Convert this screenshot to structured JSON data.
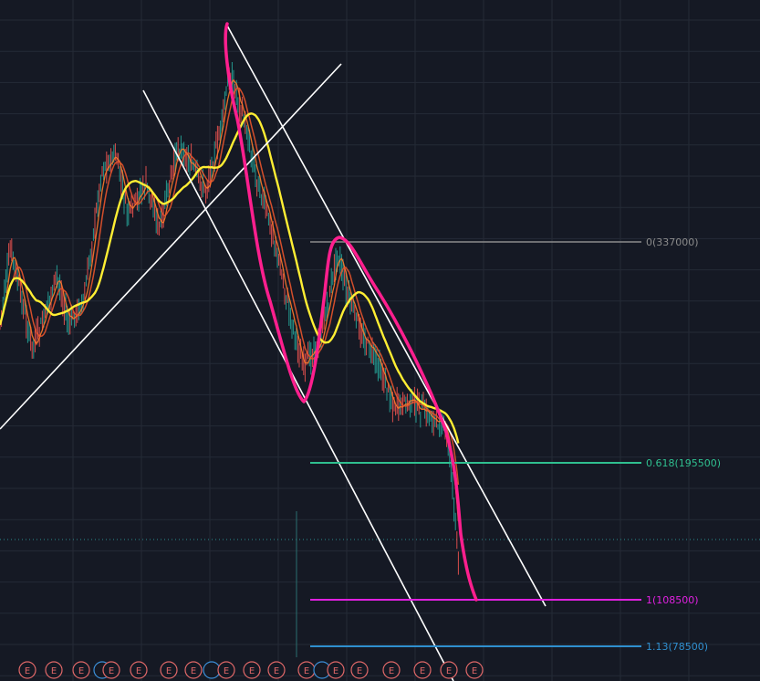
{
  "chart_data": {
    "type": "line",
    "description_free": true,
    "y_scale": "price",
    "grid": true,
    "colors": {
      "background": "#151924",
      "grid": "#252a36",
      "candle_up": "#26a69a",
      "candle_down": "#ef5350",
      "ma_fast": "#ff7a2a",
      "ma_mid": "#e8542c",
      "ma_slow": "#ffee33",
      "drawing_pink": "#ff1f8e",
      "trendline": "#ffffff",
      "fib_0": "#8c8c8c",
      "fib_0618": "#2fbf8f",
      "fib_1": "#e020e0",
      "fib_113": "#2f8fcf",
      "event": "#e06868"
    },
    "fib_levels": [
      {
        "ratio_label": "0",
        "value": "337000",
        "color": "#8c8c8c"
      },
      {
        "ratio_label": "0.618",
        "value": "195500",
        "color": "#2fbf8f"
      },
      {
        "ratio_label": "1",
        "value": "108500",
        "color": "#e020e0"
      },
      {
        "ratio_label": "1.13",
        "value": "78500",
        "color": "#2f8fcf"
      }
    ],
    "event_markers": [
      "E",
      "E",
      "E",
      "E",
      "E",
      "E",
      "E",
      "E",
      "E",
      "E",
      "E",
      "E",
      "E",
      "E",
      "E",
      "E",
      "E"
    ]
  }
}
